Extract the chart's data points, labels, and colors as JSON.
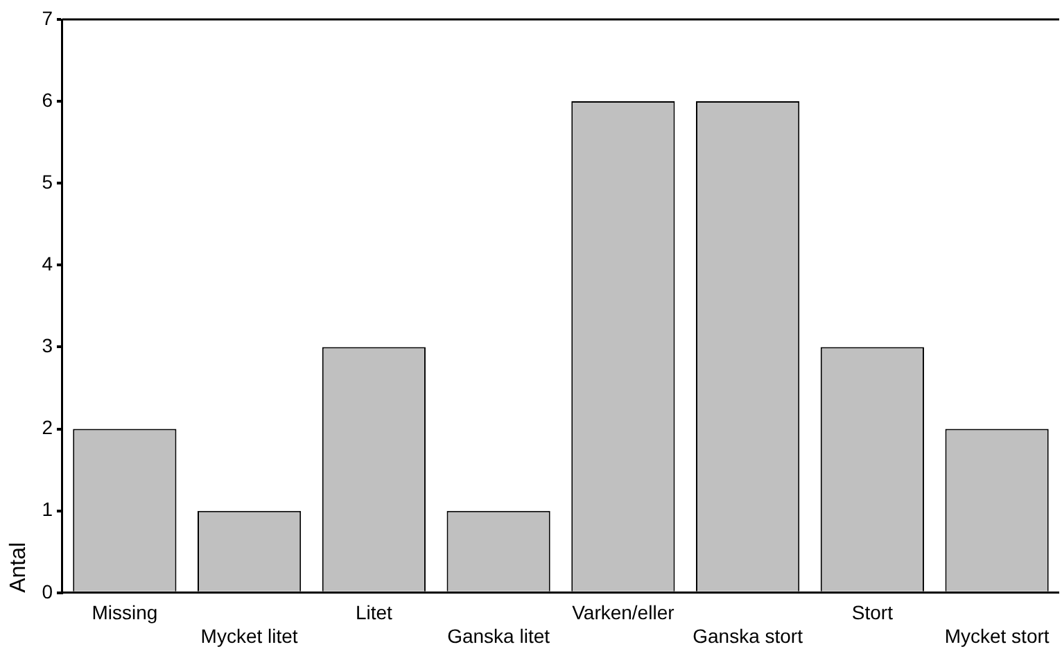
{
  "chart_data": {
    "type": "bar",
    "ylabel": "Antal",
    "categories": [
      "Missing",
      "Mycket litet",
      "Litet",
      "Ganska litet",
      "Varken/eller",
      "Ganska stort",
      "Stort",
      "Mycket stort"
    ],
    "values": [
      2,
      1,
      3,
      1,
      6,
      6,
      3,
      2
    ],
    "color": "#c0c0c0",
    "ylim": [
      0,
      7
    ],
    "yticks": [
      0,
      1,
      2,
      3,
      4,
      5,
      6,
      7
    ],
    "grid": false,
    "legend": false
  }
}
